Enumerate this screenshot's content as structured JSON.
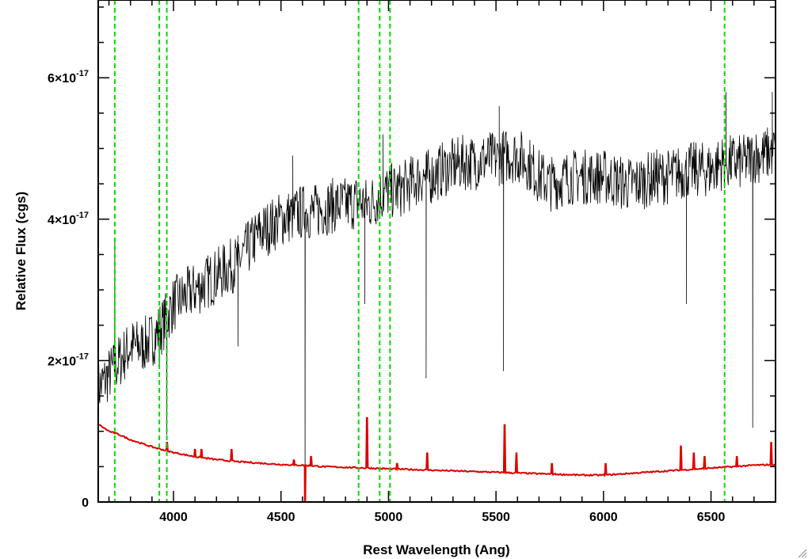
{
  "chart_data": {
    "type": "line",
    "xlabel": "Rest Wavelength (Ang)",
    "ylabel": "Relative Flux (cgs)",
    "xlim": [
      3650,
      6800
    ],
    "ylim": [
      0,
      7.1e-17
    ],
    "x_ticks": [
      4000,
      4500,
      5000,
      5500,
      6000,
      6500
    ],
    "x_tick_labels": [
      "4000",
      "4500",
      "5000",
      "5500",
      "6000",
      "6500"
    ],
    "x_minor_step": 100,
    "y_ticks": [
      {
        "value": 0,
        "mantissa": "0",
        "exponent": ""
      },
      {
        "value": 2e-17,
        "mantissa": "2×10",
        "exponent": "-17"
      },
      {
        "value": 4e-17,
        "mantissa": "4×10",
        "exponent": "-17"
      },
      {
        "value": 6e-17,
        "mantissa": "6×10",
        "exponent": "-17"
      }
    ],
    "y_minor_step": 5e-18,
    "grid": false,
    "legend": "none",
    "marker_lines": {
      "color": "#00dd00",
      "style": "dashed",
      "x": [
        3727,
        3934,
        3969,
        4861,
        4959,
        5007,
        6563
      ]
    },
    "series": [
      {
        "color": "#000000",
        "x": [
          3650,
          3700,
          3750,
          3800,
          3850,
          3900,
          3950,
          4000,
          4050,
          4100,
          4150,
          4200,
          4250,
          4300,
          4350,
          4400,
          4450,
          4500,
          4550,
          4600,
          4650,
          4700,
          4750,
          4800,
          4850,
          4900,
          4950,
          5000,
          5050,
          5100,
          5150,
          5200,
          5250,
          5300,
          5350,
          5400,
          5450,
          5500,
          5550,
          5600,
          5650,
          5700,
          5750,
          5800,
          5850,
          5900,
          5950,
          6000,
          6050,
          6100,
          6150,
          6200,
          6250,
          6300,
          6350,
          6400,
          6450,
          6500,
          6550,
          6600,
          6650,
          6700,
          6750,
          6800
        ],
        "y": [
          1.6e-17,
          1.8e-17,
          2e-17,
          2.2e-17,
          2.2e-17,
          2.3e-17,
          2.5e-17,
          2.8e-17,
          2.9e-17,
          3e-17,
          3.1e-17,
          3.2e-17,
          3.3e-17,
          3.4e-17,
          3.6e-17,
          3.8e-17,
          3.9e-17,
          4e-17,
          4.05e-17,
          4.1e-17,
          4.1e-17,
          4.15e-17,
          4.2e-17,
          4.2e-17,
          4.25e-17,
          4.2e-17,
          4.3e-17,
          4.4e-17,
          4.4e-17,
          4.5e-17,
          4.6e-17,
          4.6e-17,
          4.7e-17,
          4.75e-17,
          4.8e-17,
          4.8e-17,
          4.85e-17,
          4.85e-17,
          4.9e-17,
          4.9e-17,
          4.8e-17,
          4.6e-17,
          4.5e-17,
          4.55e-17,
          4.6e-17,
          4.6e-17,
          4.6e-17,
          4.6e-17,
          4.55e-17,
          4.5e-17,
          4.5e-17,
          4.55e-17,
          4.6e-17,
          4.6e-17,
          4.65e-17,
          4.7e-17,
          4.7e-17,
          4.7e-17,
          4.8e-17,
          4.8e-17,
          4.8e-17,
          4.9e-17,
          4.9e-17,
          5e-17
        ],
        "noise_amplitude": 4e-18,
        "absorption_features": [
          {
            "x": 3934,
            "y": 1.9e-17
          },
          {
            "x": 3969,
            "y": 9.5e-18
          },
          {
            "x": 4300,
            "y": 2.2e-17
          },
          {
            "x": 4612,
            "y": 0.0
          },
          {
            "x": 4890,
            "y": 2.8e-17
          },
          {
            "x": 5175,
            "y": 1.75e-17
          },
          {
            "x": 5535,
            "y": 1.85e-17
          },
          {
            "x": 6385,
            "y": 2.8e-17
          },
          {
            "x": 6694,
            "y": 1.05e-17
          }
        ],
        "emission_spikes": [
          {
            "x": 3727,
            "y": 3.7e-17
          },
          {
            "x": 4555,
            "y": 4.9e-17
          },
          {
            "x": 4975,
            "y": 5.2e-17
          },
          {
            "x": 5515,
            "y": 5.6e-17
          },
          {
            "x": 6570,
            "y": 5.8e-17
          },
          {
            "x": 6785,
            "y": 5.8e-17
          }
        ]
      },
      {
        "color": "#dd0000",
        "x": [
          3650,
          3700,
          3750,
          3800,
          3850,
          3900,
          3950,
          4000,
          4100,
          4200,
          4300,
          4400,
          4500,
          4600,
          4700,
          4800,
          4900,
          5000,
          5100,
          5200,
          5300,
          5400,
          5500,
          5600,
          5700,
          5800,
          5900,
          6000,
          6100,
          6200,
          6300,
          6400,
          6500,
          6600,
          6700,
          6800
        ],
        "y": [
          1.1e-17,
          1e-17,
          9.5e-18,
          8.8e-18,
          8.3e-18,
          7.8e-18,
          7.4e-18,
          7e-18,
          6.4e-18,
          6e-18,
          5.7e-18,
          5.5e-18,
          5.3e-18,
          5.2e-18,
          5e-18,
          4.9e-18,
          4.8e-18,
          4.7e-18,
          4.6e-18,
          4.5e-18,
          4.4e-18,
          4.3e-18,
          4.2e-18,
          4.1e-18,
          4e-18,
          3.9e-18,
          3.8e-18,
          3.8e-18,
          4e-18,
          4.2e-18,
          4.4e-18,
          4.6e-18,
          4.8e-18,
          5e-18,
          5.2e-18,
          5.3e-18
        ],
        "spikes": [
          {
            "x": 3970,
            "y": 8.5e-18
          },
          {
            "x": 4100,
            "y": 7.5e-18
          },
          {
            "x": 4130,
            "y": 7.5e-18
          },
          {
            "x": 4270,
            "y": 7.5e-18
          },
          {
            "x": 4560,
            "y": 6e-18
          },
          {
            "x": 4612,
            "y": 0.0
          },
          {
            "x": 4640,
            "y": 6.5e-18
          },
          {
            "x": 4900,
            "y": 1.2e-17
          },
          {
            "x": 5040,
            "y": 5.5e-18
          },
          {
            "x": 5180,
            "y": 7e-18
          },
          {
            "x": 5540,
            "y": 1.1e-17
          },
          {
            "x": 5595,
            "y": 7e-18
          },
          {
            "x": 5760,
            "y": 5.5e-18
          },
          {
            "x": 6010,
            "y": 5.5e-18
          },
          {
            "x": 6360,
            "y": 8e-18
          },
          {
            "x": 6420,
            "y": 7e-18
          },
          {
            "x": 6470,
            "y": 6.5e-18
          },
          {
            "x": 6620,
            "y": 6.5e-18
          },
          {
            "x": 6780,
            "y": 8.5e-18
          }
        ]
      }
    ]
  }
}
